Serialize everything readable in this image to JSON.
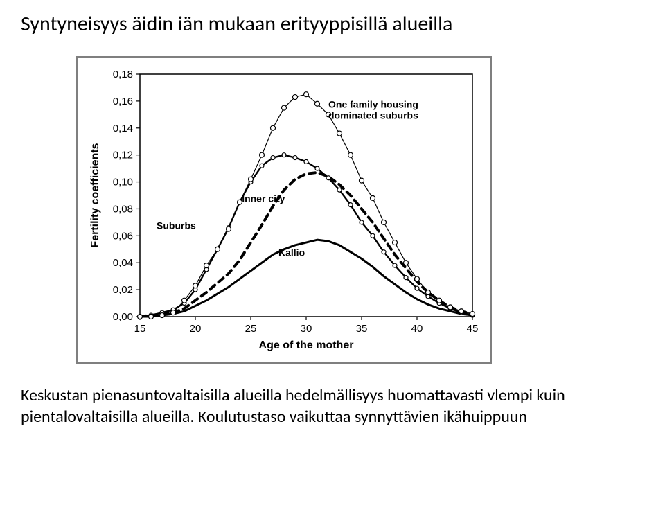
{
  "title": "Syntyneisyys äidin iän mukaan erityyppisillä alueilla",
  "caption_line1": "Keskustan pienasuntovaltaisilla alueilla hedelmällisyys huomattavasti vlempi kuin",
  "caption_line2": "pientalovaltaisilla alueilla. Koulutustaso vaikuttaa synnyttävien ikähuippuun",
  "chart": {
    "type": "line",
    "xlabel": "Age of the mother",
    "ylabel": "Fertility coefficients",
    "label_fontsize": 16,
    "tick_fontsize": 15,
    "x": [
      15,
      16,
      17,
      18,
      19,
      20,
      21,
      22,
      23,
      24,
      25,
      26,
      27,
      28,
      29,
      30,
      31,
      32,
      33,
      34,
      35,
      36,
      37,
      38,
      39,
      40,
      41,
      42,
      43,
      44,
      45
    ],
    "xlim": [
      15,
      45
    ],
    "ylim": [
      0.0,
      0.18
    ],
    "xtick_step": 5,
    "yticks": [
      0.0,
      0.02,
      0.04,
      0.06,
      0.08,
      0.1,
      0.12,
      0.14,
      0.16,
      0.18
    ],
    "ytick_labels": [
      "0,00",
      "0,02",
      "0,04",
      "0,06",
      "0,08",
      "0,10",
      "0,12",
      "0,14",
      "0,16",
      "0,18"
    ],
    "background_color": "#ffffff",
    "axis_color": "#000000",
    "frame_color": "#7f7f7f",
    "series": {
      "one_family_suburbs": {
        "label": "One family housing dominated suburbs",
        "label_pos": {
          "x": 32,
          "y": 0.155
        },
        "color": "#000000",
        "line_width": 1.2,
        "marker": "circle-open",
        "marker_size": 7,
        "values": [
          0.0,
          0.0,
          0.001,
          0.003,
          0.012,
          0.023,
          0.038,
          0.05,
          0.065,
          0.085,
          0.102,
          0.12,
          0.14,
          0.155,
          0.163,
          0.165,
          0.158,
          0.15,
          0.136,
          0.12,
          0.101,
          0.088,
          0.07,
          0.055,
          0.04,
          0.028,
          0.018,
          0.012,
          0.007,
          0.004,
          0.002
        ]
      },
      "suburbs": {
        "label": "Suburbs",
        "label_pos": {
          "x": 16.5,
          "y": 0.065
        },
        "color": "#000000",
        "line_width": 2.4,
        "marker": "circle-open",
        "marker_size": 6,
        "values": [
          0.0,
          0.001,
          0.003,
          0.005,
          0.01,
          0.02,
          0.035,
          0.05,
          0.066,
          0.085,
          0.1,
          0.112,
          0.118,
          0.12,
          0.118,
          0.115,
          0.11,
          0.103,
          0.094,
          0.083,
          0.07,
          0.06,
          0.048,
          0.038,
          0.029,
          0.021,
          0.015,
          0.01,
          0.006,
          0.003,
          0.001
        ]
      },
      "inner_city": {
        "label": "Inner city",
        "label_pos": {
          "x": 24.2,
          "y": 0.085
        },
        "color": "#000000",
        "line_width": 4.0,
        "marker": "none",
        "dash": "9,7",
        "values": [
          0.0,
          0.001,
          0.002,
          0.003,
          0.006,
          0.012,
          0.018,
          0.025,
          0.032,
          0.042,
          0.055,
          0.068,
          0.082,
          0.094,
          0.102,
          0.106,
          0.107,
          0.104,
          0.098,
          0.09,
          0.08,
          0.07,
          0.058,
          0.046,
          0.036,
          0.026,
          0.018,
          0.012,
          0.007,
          0.004,
          0.002
        ]
      },
      "kallio": {
        "label": "Kallio",
        "label_pos": {
          "x": 27.5,
          "y": 0.045
        },
        "color": "#000000",
        "line_width": 3.0,
        "marker": "none",
        "values": [
          0.0,
          0.0,
          0.001,
          0.002,
          0.004,
          0.008,
          0.012,
          0.017,
          0.022,
          0.028,
          0.034,
          0.04,
          0.046,
          0.05,
          0.053,
          0.055,
          0.057,
          0.056,
          0.053,
          0.048,
          0.043,
          0.037,
          0.03,
          0.024,
          0.018,
          0.013,
          0.009,
          0.006,
          0.004,
          0.002,
          0.001
        ]
      }
    }
  }
}
